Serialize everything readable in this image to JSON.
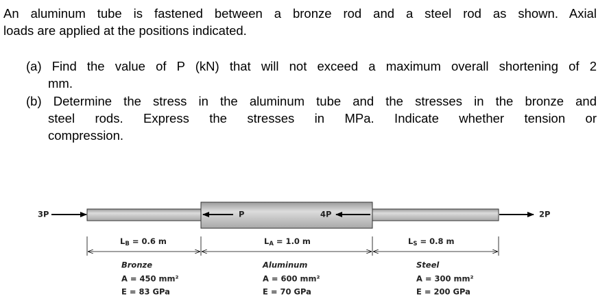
{
  "intro": [
    "An aluminum tube is fastened between a bronze rod and a steel rod as shown. Axial",
    "loads are applied at the positions indicated."
  ],
  "part_a": [
    "(a) Find the value of P (kN) that will not exceed a maximum overall shortening of 2",
    "mm."
  ],
  "part_b": [
    "(b) Determine the stress in the aluminum tube and the stresses in the bronze and",
    "steel rods. Express the stresses in MPa. Indicate whether tension or",
    "compression."
  ],
  "diagram": {
    "loads": [
      "3P",
      "P",
      "4P",
      "2P"
    ],
    "lengths": [
      {
        "symbol": "L",
        "subscript": "B",
        "text": "= 0.6 m"
      },
      {
        "symbol": "L",
        "subscript": "A",
        "text": "= 1.0 m"
      },
      {
        "symbol": "L",
        "subscript": "S",
        "text": "= 0.8 m"
      }
    ],
    "materials": [
      {
        "name": "Bronze",
        "area": "A = 450 mm²",
        "modulus": "E = 83 GPa"
      },
      {
        "name": "Aluminum",
        "area": "A = 600 mm²",
        "modulus": "E = 70 GPa"
      },
      {
        "name": "Steel",
        "area": "A = 300 mm²",
        "modulus": "E = 200 GPa"
      }
    ]
  }
}
